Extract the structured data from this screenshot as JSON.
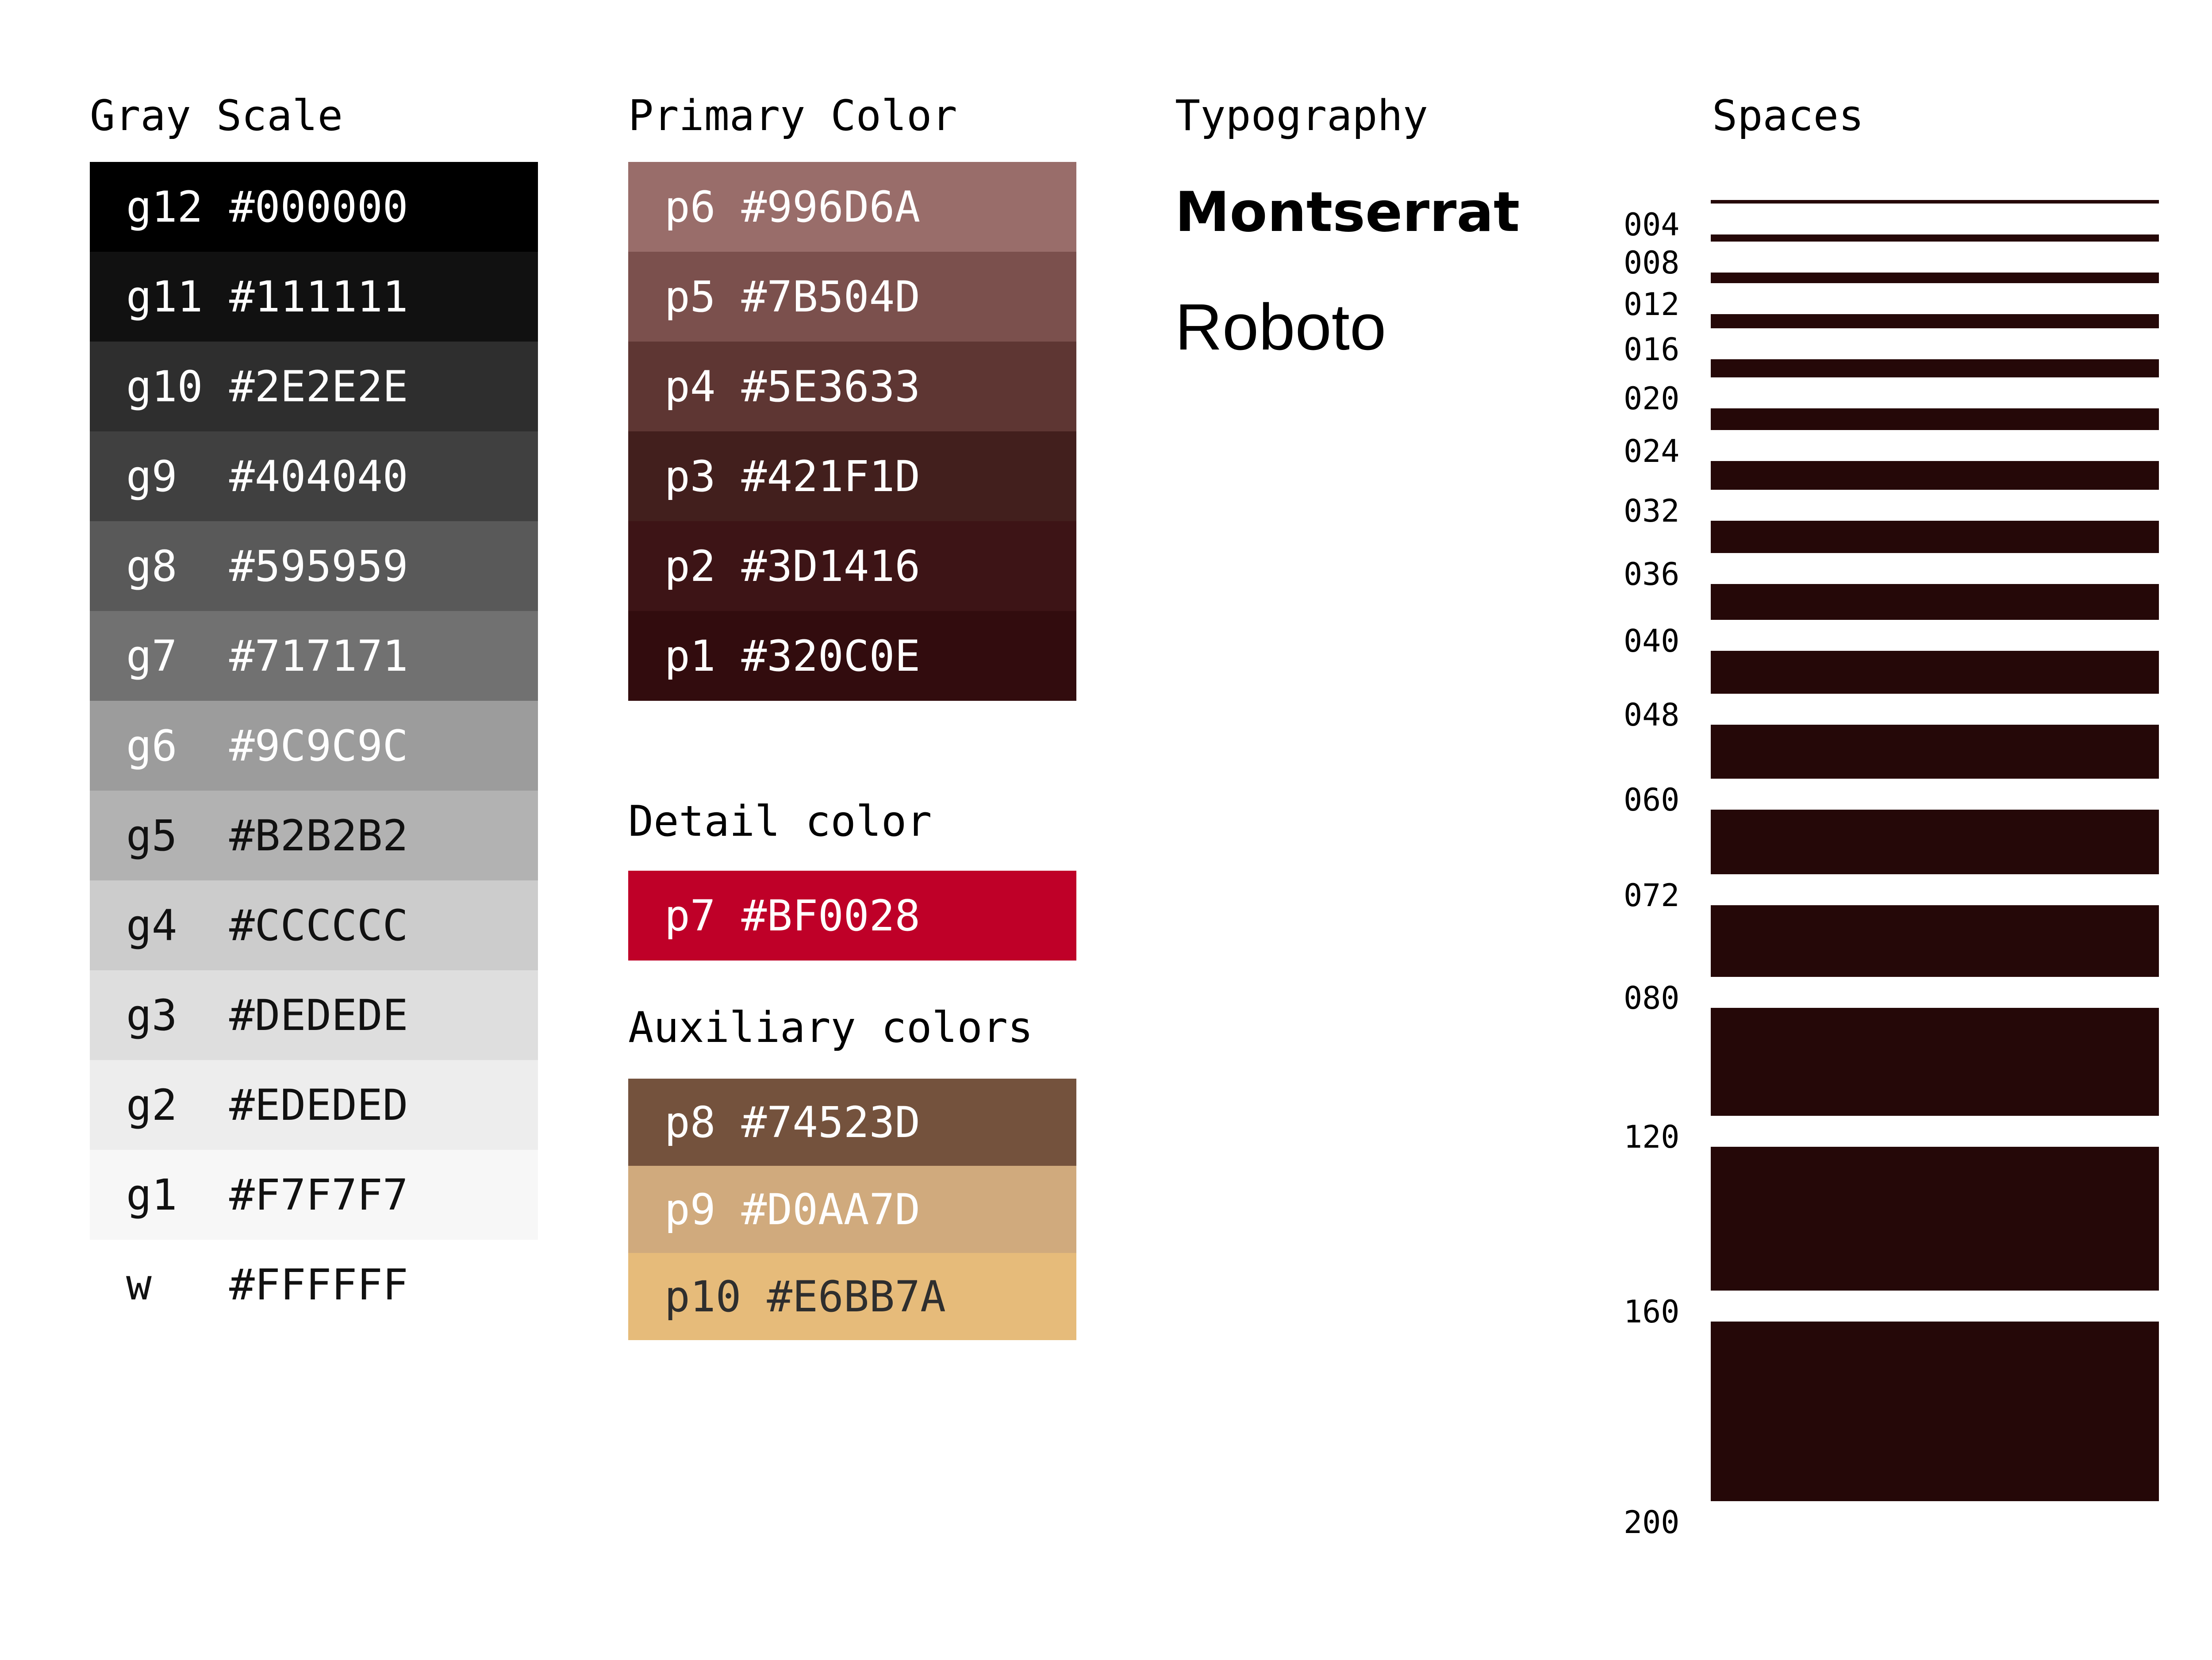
{
  "gray_scale": {
    "title": "Gray Scale",
    "swatches": [
      {
        "name": "g12",
        "hex": "#000000",
        "text_color": "#FFFFFF"
      },
      {
        "name": "g11",
        "hex": "#111111",
        "text_color": "#FFFFFF"
      },
      {
        "name": "g10",
        "hex": "#2E2E2E",
        "text_color": "#FFFFFF"
      },
      {
        "name": "g9",
        "hex": "#404040",
        "text_color": "#FFFFFF"
      },
      {
        "name": "g8",
        "hex": "#595959",
        "text_color": "#FFFFFF"
      },
      {
        "name": "g7",
        "hex": "#717171",
        "text_color": "#FFFFFF"
      },
      {
        "name": "g6",
        "hex": "#9C9C9C",
        "text_color": "#FFFFFF"
      },
      {
        "name": "g5",
        "hex": "#B2B2B2",
        "text_color": "#111111"
      },
      {
        "name": "g4",
        "hex": "#CCCCCC",
        "text_color": "#111111"
      },
      {
        "name": "g3",
        "hex": "#DEDEDE",
        "text_color": "#111111"
      },
      {
        "name": "g2",
        "hex": "#EDEDED",
        "text_color": "#111111"
      },
      {
        "name": "g1",
        "hex": "#F7F7F7",
        "text_color": "#111111"
      },
      {
        "name": "w",
        "hex": "#FFFFFF",
        "text_color": "#111111"
      }
    ]
  },
  "primary_color": {
    "title": "Primary Color",
    "swatches": [
      {
        "name": "p6",
        "hex": "#996D6A",
        "text_color": "#FFFFFF"
      },
      {
        "name": "p5",
        "hex": "#7B504D",
        "text_color": "#FFFFFF"
      },
      {
        "name": "p4",
        "hex": "#5E3633",
        "text_color": "#FFFFFF"
      },
      {
        "name": "p3",
        "hex": "#421F1D",
        "text_color": "#FFFFFF"
      },
      {
        "name": "p2",
        "hex": "#3D1416",
        "text_color": "#FFFFFF"
      },
      {
        "name": "p1",
        "hex": "#320C0E",
        "text_color": "#FFFFFF"
      }
    ]
  },
  "detail_color": {
    "title": "Detail color",
    "swatches": [
      {
        "name": "p7",
        "hex": "#BF0028",
        "text_color": "#FFFFFF"
      }
    ]
  },
  "auxiliary_colors": {
    "title": "Auxiliary colors",
    "swatches": [
      {
        "name": "p8",
        "hex": "#74523D",
        "text_color": "#FFFFFF"
      },
      {
        "name": "p9",
        "hex": "#D0AA7D",
        "text_color": "#FFFFFF"
      },
      {
        "name": "p10",
        "hex": "#E6BB7A",
        "text_color": "#2E2E2E"
      }
    ]
  },
  "typography": {
    "title": "Typography",
    "fonts": [
      "Montserrat",
      "Roboto"
    ]
  },
  "spaces": {
    "title": "Spaces",
    "bar_color": "#250808",
    "items": [
      {
        "label": "004",
        "size": 4
      },
      {
        "label": "008",
        "size": 8
      },
      {
        "label": "012",
        "size": 12
      },
      {
        "label": "016",
        "size": 16
      },
      {
        "label": "020",
        "size": 20
      },
      {
        "label": "024",
        "size": 24
      },
      {
        "label": "032",
        "size": 32
      },
      {
        "label": "036",
        "size": 36
      },
      {
        "label": "040",
        "size": 40
      },
      {
        "label": "048",
        "size": 48
      },
      {
        "label": "060",
        "size": 60
      },
      {
        "label": "072",
        "size": 72
      },
      {
        "label": "080",
        "size": 80
      },
      {
        "label": "120",
        "size": 120
      },
      {
        "label": "160",
        "size": 160
      },
      {
        "label": "200",
        "size": 200
      }
    ]
  }
}
